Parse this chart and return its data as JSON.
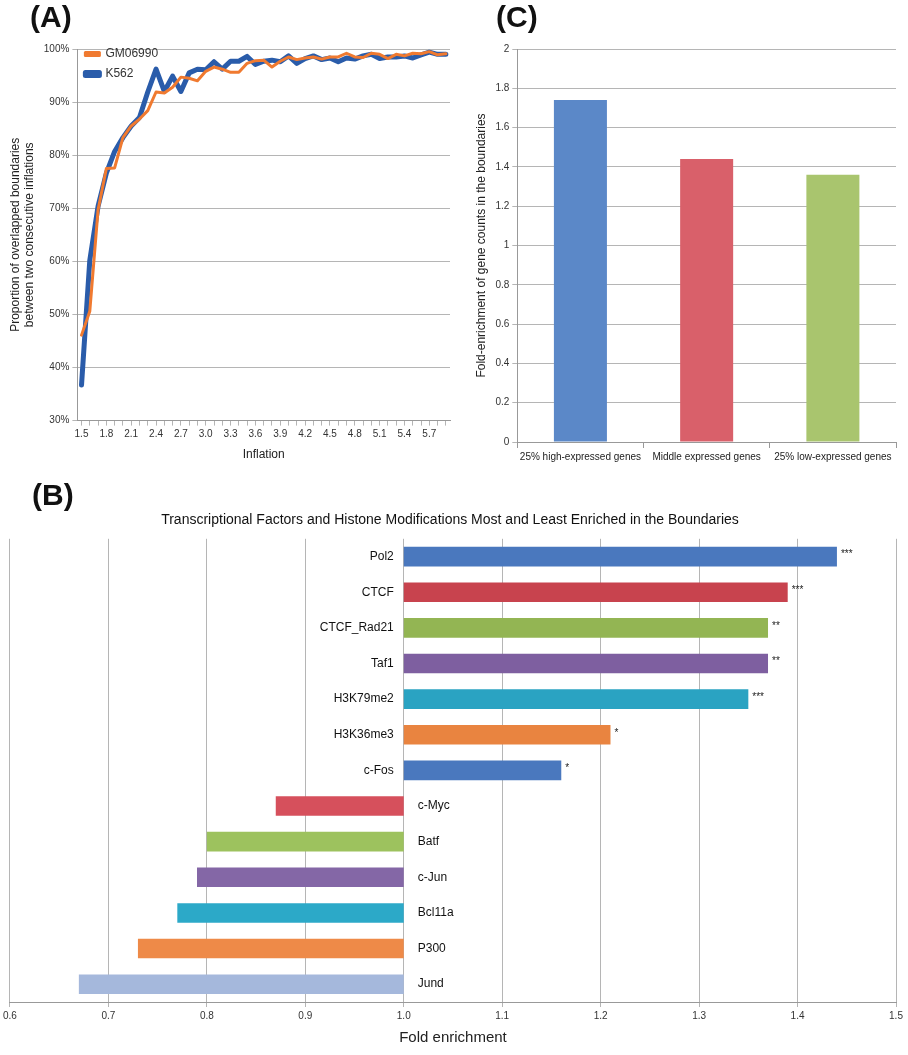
{
  "chart_data": [
    {
      "type": "line",
      "annotations": [
        "(A)"
      ],
      "xlabel": "Inflation",
      "ylabel": "Proportion of overlapped boundaries between two consecutive inflations",
      "x": [
        1.5,
        1.6,
        1.7,
        1.8,
        1.9,
        2.0,
        2.1,
        2.2,
        2.3,
        2.4,
        2.5,
        2.6,
        2.7,
        2.8,
        2.9,
        3.0,
        3.1,
        3.2,
        3.3,
        3.4,
        3.5,
        3.6,
        3.7,
        3.8,
        3.9,
        4.0,
        4.1,
        4.2,
        4.3,
        4.4,
        4.5,
        4.6,
        4.7,
        4.8,
        4.9,
        5.0,
        5.1,
        5.2,
        5.3,
        5.4,
        5.5,
        5.6,
        5.7,
        5.8,
        5.9
      ],
      "series": [
        {
          "name": "GM06990",
          "color": "#f07a30",
          "values": [
            46.1,
            50.6,
            69.7,
            77.5,
            77.6,
            83.3,
            85.5,
            86.8,
            88.4,
            91.9,
            91.7,
            92.8,
            94.7,
            94.5,
            94,
            95.8,
            96.6,
            96.2,
            95.6,
            95.6,
            97.3,
            97.8,
            97.9,
            96.6,
            97.7,
            98.5,
            98,
            98.3,
            98.5,
            98.1,
            98.5,
            98.5,
            99.2,
            98.5,
            98.4,
            99.2,
            99,
            98.2,
            99,
            98.7,
            99.2,
            99.1,
            99.5,
            98.9,
            99.1
          ]
        },
        {
          "name": "K562",
          "color": "#2a5caa",
          "values": [
            36.7,
            60.2,
            70.4,
            76.6,
            80.7,
            83.3,
            85.5,
            87.1,
            91.9,
            96.2,
            92,
            94.9,
            92,
            95.5,
            96.2,
            96.1,
            97.6,
            96.2,
            97.7,
            97.7,
            98.6,
            97.1,
            97.7,
            97.9,
            97.6,
            98.7,
            97.3,
            98.2,
            98.7,
            98,
            98.3,
            97.6,
            98.3,
            98.1,
            98.7,
            99,
            98.2,
            98.5,
            98.5,
            98.7,
            98.3,
            98.9,
            99.4,
            99,
            99
          ]
        }
      ],
      "xlim": [
        1.45,
        5.95
      ],
      "xticks": [
        1.5,
        {
          "value": 1.6,
          "label": null
        },
        {
          "value": 1.7,
          "label": null
        },
        1.8,
        {
          "value": 1.9,
          "label": null
        },
        {
          "value": 2.0,
          "label": null
        },
        2.1,
        {
          "value": 2.2,
          "label": null
        },
        {
          "value": 2.3,
          "label": null
        },
        2.4,
        {
          "value": 2.5,
          "label": null
        },
        {
          "value": 2.6,
          "label": null
        },
        2.7,
        {
          "value": 2.8,
          "label": null
        },
        {
          "value": 2.9,
          "label": null
        },
        {
          "value": 3.0,
          "label": "3.0"
        },
        {
          "value": 3.1,
          "label": null
        },
        {
          "value": 3.2,
          "label": null
        },
        3.3,
        {
          "value": 3.4,
          "label": null
        },
        {
          "value": 3.5,
          "label": null
        },
        3.6,
        {
          "value": 3.7,
          "label": null
        },
        {
          "value": 3.8,
          "label": null
        },
        3.9,
        {
          "value": 4.0,
          "label": null
        },
        {
          "value": 4.1,
          "label": null
        },
        4.2,
        {
          "value": 4.3,
          "label": null
        },
        {
          "value": 4.4,
          "label": null
        },
        4.5,
        {
          "value": 4.6,
          "label": null
        },
        {
          "value": 4.7,
          "label": null
        },
        4.8,
        {
          "value": 4.9,
          "label": null
        },
        {
          "value": 5.0,
          "label": null
        },
        5.1,
        {
          "value": 5.2,
          "label": null
        },
        {
          "value": 5.3,
          "label": null
        },
        5.4,
        {
          "value": 5.5,
          "label": null
        },
        {
          "value": 5.6,
          "label": null
        },
        5.7,
        {
          "value": 5.8,
          "label": null
        },
        {
          "value": 5.9,
          "label": null
        }
      ],
      "ylim": [
        30,
        100
      ],
      "yticks": [
        {
          "value": 30,
          "label": "30%"
        },
        {
          "value": 40,
          "label": "40%"
        },
        {
          "value": 50,
          "label": "50%"
        },
        {
          "value": 60,
          "label": "60%"
        },
        {
          "value": 70,
          "label": "70%"
        },
        {
          "value": 80,
          "label": "80%"
        },
        {
          "value": 90,
          "label": "90%"
        },
        {
          "value": 100,
          "label": "100%"
        }
      ],
      "grid": "y",
      "legend": "top left",
      "marker": "none",
      "line_style": "solid"
    },
    {
      "type": "bar",
      "annotations": [
        "(C)"
      ],
      "ylabel": "Fold-enrichment of gene counts in the boundaries",
      "categories": [
        "25% high-expressed genes",
        "Middle expressed genes",
        "25% low-expressed genes"
      ],
      "values": [
        1.74,
        1.44,
        1.36
      ],
      "colors": [
        "#5b88c8",
        "#d9606a",
        "#a9c56e"
      ],
      "ylim": [
        0,
        2
      ],
      "yticks": [
        0,
        0.2,
        0.4,
        0.6,
        0.8,
        1,
        1.2,
        1.4,
        1.6,
        1.8,
        2
      ],
      "grid": "y"
    },
    {
      "type": "bar",
      "orientation": "horizontal",
      "title": "Transcriptional Factors and Histone Modifications Most and Least Enriched in the Boundaries",
      "xlabel": "Fold enrichment",
      "annotations": [
        "(B)",
        {
          "text": "***",
          "x": 1.44,
          "y": "Pol2"
        },
        {
          "text": "***",
          "x": 1.39,
          "y": "CTCF"
        },
        {
          "text": "**",
          "x": 1.37,
          "y": "CTCF_Rad21"
        },
        {
          "text": "**",
          "x": 1.37,
          "y": "Taf1"
        },
        {
          "text": "***",
          "x": 1.35,
          "y": "H3K79me2"
        },
        {
          "text": "*",
          "x": 1.21,
          "y": "H3K36me3"
        },
        {
          "text": "*",
          "x": 1.16,
          "y": "c-Fos"
        }
      ],
      "categories": [
        "Pol2",
        "CTCF",
        "CTCF_Rad21",
        "Taf1",
        "H3K79me2",
        "H3K36me3",
        "c-Fos",
        "c-Myc",
        "Batf",
        "c-Jun",
        "Bcl11a",
        "P300",
        "Jund"
      ],
      "base": [
        1,
        1,
        1,
        1,
        1,
        1,
        1,
        1,
        1,
        1,
        1,
        1,
        1
      ],
      "values": [
        0.44,
        0.39,
        0.37,
        0.37,
        0.35,
        0.21,
        0.16,
        -0.13,
        -0.2,
        -0.21,
        -0.23,
        -0.27,
        -0.33
      ],
      "colors": [
        "#4a78be",
        "#c8434e",
        "#93b553",
        "#7e5fa0",
        "#2aa3c2",
        "#e98440",
        "#4a78be",
        "#d6505c",
        "#9dc25e",
        "#8467a6",
        "#2ca9c8",
        "#ee8a48",
        "#a5b8dc"
      ],
      "xlim": [
        0.6,
        1.5
      ],
      "xticks": [
        0.6,
        0.7,
        0.8,
        0.9,
        {
          "value": 1,
          "label": "1.0"
        },
        1.1,
        1.2,
        1.3,
        1.4,
        1.5
      ],
      "grid": "x"
    }
  ]
}
